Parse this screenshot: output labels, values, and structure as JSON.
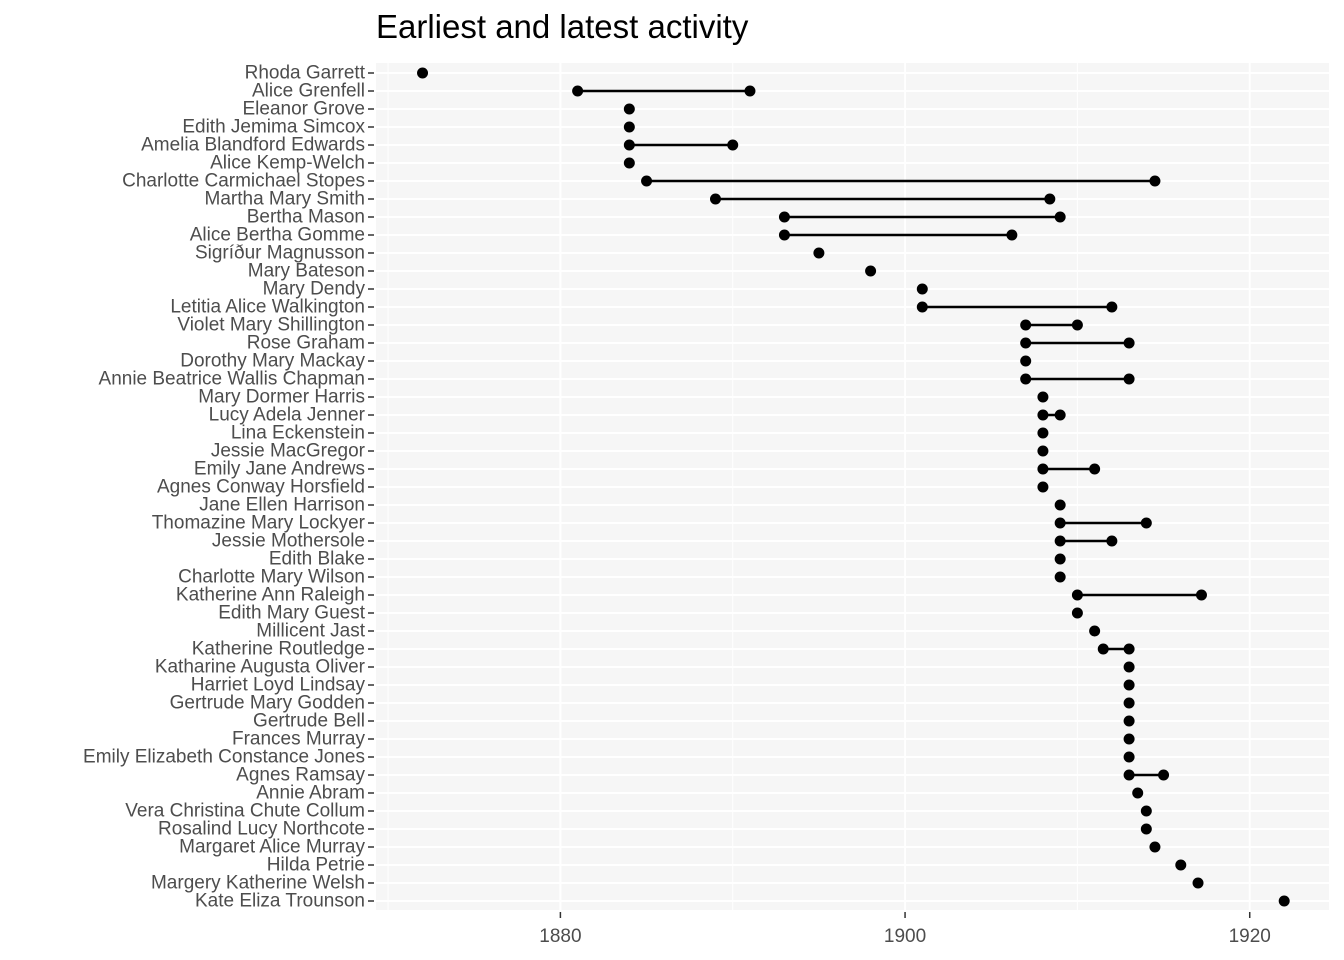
{
  "chart_data": {
    "type": "dumbbell",
    "title": "Earliest and latest activity",
    "xlabel": "",
    "ylabel": "",
    "xlim": [
      1869.3,
      1924.6
    ],
    "x_ticks": [
      1880,
      1900,
      1920
    ],
    "grid": true,
    "legend": "none",
    "colors": {
      "panel": "#f6f6f6",
      "grid": "#ffffff",
      "mark": "#000000",
      "text": "#4d4d4d"
    },
    "rows": [
      {
        "name": "Rhoda Garrett",
        "start": 1872,
        "end": 1872
      },
      {
        "name": "Alice Grenfell",
        "start": 1881,
        "end": 1891
      },
      {
        "name": "Eleanor Grove",
        "start": 1884,
        "end": 1884
      },
      {
        "name": "Edith Jemima Simcox",
        "start": 1884,
        "end": 1884
      },
      {
        "name": "Amelia Blandford Edwards",
        "start": 1884,
        "end": 1890
      },
      {
        "name": "Alice Kemp-Welch",
        "start": 1884,
        "end": 1884
      },
      {
        "name": "Charlotte Carmichael Stopes",
        "start": 1885,
        "end": 1914.5
      },
      {
        "name": "Martha Mary Smith",
        "start": 1889,
        "end": 1908.4
      },
      {
        "name": "Bertha Mason",
        "start": 1893,
        "end": 1909
      },
      {
        "name": "Alice Bertha Gomme",
        "start": 1893,
        "end": 1906.2
      },
      {
        "name": "Sigríður Magnusson",
        "start": 1895,
        "end": 1895
      },
      {
        "name": "Mary Bateson",
        "start": 1898,
        "end": 1898
      },
      {
        "name": "Mary Dendy",
        "start": 1901,
        "end": 1901
      },
      {
        "name": "Letitia Alice Walkington",
        "start": 1901,
        "end": 1912
      },
      {
        "name": "Violet Mary Shillington",
        "start": 1907,
        "end": 1910
      },
      {
        "name": "Rose Graham",
        "start": 1907,
        "end": 1913
      },
      {
        "name": "Dorothy Mary Mackay",
        "start": 1907,
        "end": 1907
      },
      {
        "name": "Annie Beatrice Wallis Chapman",
        "start": 1907,
        "end": 1913
      },
      {
        "name": "Mary Dormer Harris",
        "start": 1908,
        "end": 1908
      },
      {
        "name": "Lucy Adela Jenner",
        "start": 1908,
        "end": 1909
      },
      {
        "name": "Lina Eckenstein",
        "start": 1908,
        "end": 1908
      },
      {
        "name": "Jessie MacGregor",
        "start": 1908,
        "end": 1908
      },
      {
        "name": "Emily Jane Andrews",
        "start": 1908,
        "end": 1911
      },
      {
        "name": "Agnes Conway Horsfield",
        "start": 1908,
        "end": 1908
      },
      {
        "name": "Jane Ellen Harrison",
        "start": 1909,
        "end": 1909
      },
      {
        "name": "Thomazine Mary Lockyer",
        "start": 1909,
        "end": 1914
      },
      {
        "name": "Jessie Mothersole",
        "start": 1909,
        "end": 1912
      },
      {
        "name": "Edith Blake",
        "start": 1909,
        "end": 1909
      },
      {
        "name": "Charlotte Mary Wilson",
        "start": 1909,
        "end": 1909
      },
      {
        "name": "Katherine Ann Raleigh",
        "start": 1910,
        "end": 1917.2
      },
      {
        "name": "Edith Mary Guest",
        "start": 1910,
        "end": 1910
      },
      {
        "name": "Millicent Jast",
        "start": 1911,
        "end": 1911
      },
      {
        "name": "Katherine Routledge",
        "start": 1911.5,
        "end": 1913
      },
      {
        "name": "Katharine Augusta Oliver",
        "start": 1913,
        "end": 1913
      },
      {
        "name": "Harriet Loyd Lindsay",
        "start": 1913,
        "end": 1913
      },
      {
        "name": "Gertrude Mary Godden",
        "start": 1913,
        "end": 1913
      },
      {
        "name": "Gertrude Bell",
        "start": 1913,
        "end": 1913
      },
      {
        "name": "Frances Murray",
        "start": 1913,
        "end": 1913
      },
      {
        "name": "Emily Elizabeth Constance Jones",
        "start": 1913,
        "end": 1913
      },
      {
        "name": "Agnes Ramsay",
        "start": 1913,
        "end": 1915
      },
      {
        "name": "Annie Abram",
        "start": 1913.5,
        "end": 1913.5
      },
      {
        "name": "Vera Christina Chute Collum",
        "start": 1914,
        "end": 1914
      },
      {
        "name": "Rosalind Lucy Northcote",
        "start": 1914,
        "end": 1914
      },
      {
        "name": "Margaret Alice Murray",
        "start": 1914.5,
        "end": 1914.5
      },
      {
        "name": "Hilda Petrie",
        "start": 1916,
        "end": 1916
      },
      {
        "name": "Margery Katherine Welsh",
        "start": 1917,
        "end": 1917
      },
      {
        "name": "Kate Eliza Trounson",
        "start": 1922,
        "end": 1922
      }
    ]
  }
}
